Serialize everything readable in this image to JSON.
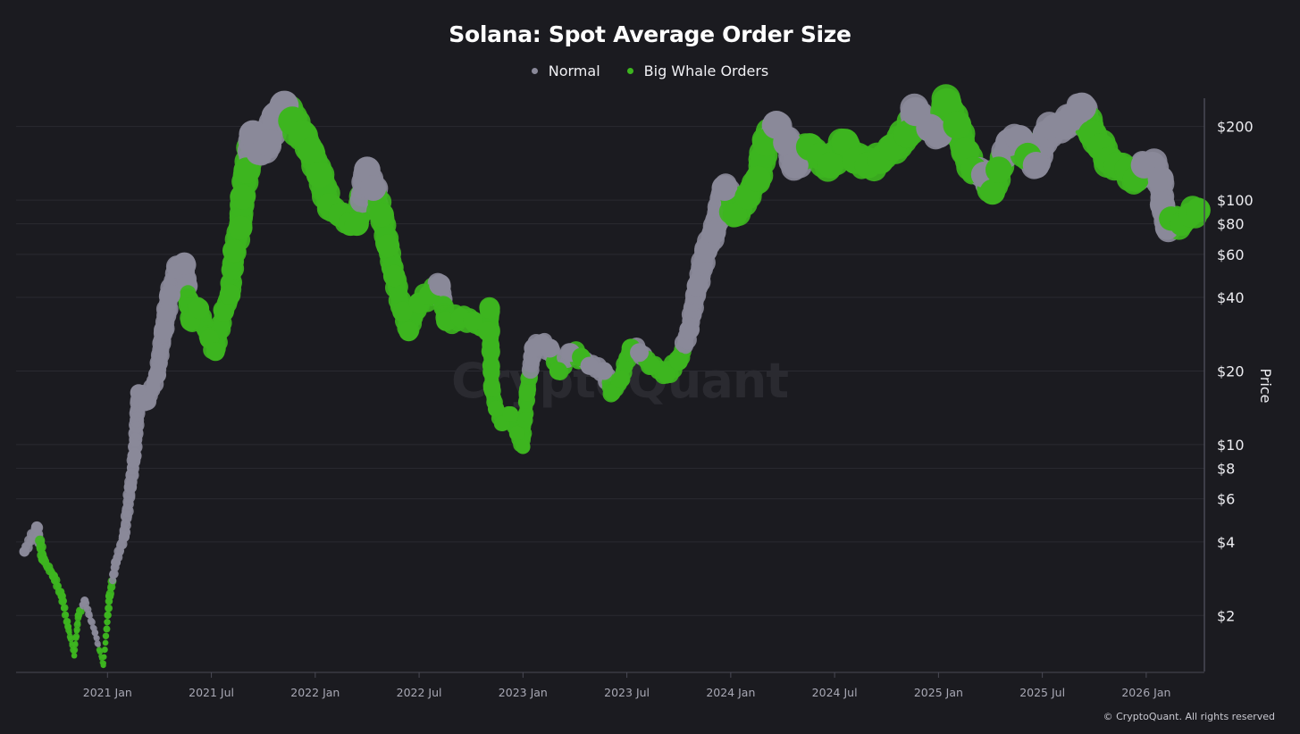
{
  "chart_data": {
    "type": "scatter",
    "title": "Solana: Spot Average Order Size",
    "ylabel": "Price",
    "xlabel": "",
    "yscale": "log",
    "ylim": [
      1.18,
      261
    ],
    "xlim": [
      2020.56,
      2026.28
    ],
    "grid": true,
    "legend_placement": "top-center",
    "legend": [
      {
        "name": "Normal",
        "color": "#8a8999"
      },
      {
        "name": "Big Whale Orders",
        "color": "#3db51f"
      }
    ],
    "y_ticks": [
      {
        "value": 200,
        "label": "$200"
      },
      {
        "value": 100,
        "label": "$100"
      },
      {
        "value": 80,
        "label": "$80"
      },
      {
        "value": 60,
        "label": "$60"
      },
      {
        "value": 40,
        "label": "$40"
      },
      {
        "value": 20,
        "label": "$20"
      },
      {
        "value": 10,
        "label": "$10"
      },
      {
        "value": 8,
        "label": "$8"
      },
      {
        "value": 6,
        "label": "$6"
      },
      {
        "value": 4,
        "label": "$4"
      },
      {
        "value": 2,
        "label": "$2"
      }
    ],
    "x_ticks": [
      {
        "value": 2021.0,
        "label": "2021 Jan"
      },
      {
        "value": 2021.5,
        "label": "2021 Jul"
      },
      {
        "value": 2022.0,
        "label": "2022 Jan"
      },
      {
        "value": 2022.5,
        "label": "2022 Jul"
      },
      {
        "value": 2023.0,
        "label": "2023 Jan"
      },
      {
        "value": 2023.5,
        "label": "2023 Jul"
      },
      {
        "value": 2024.0,
        "label": "2024 Jan"
      },
      {
        "value": 2024.5,
        "label": "2024 Jul"
      },
      {
        "value": 2025.0,
        "label": "2025 Jan"
      },
      {
        "value": 2025.5,
        "label": "2025 Jul"
      },
      {
        "value": 2026.0,
        "label": "2026 Jan"
      }
    ],
    "points_columns": [
      "year",
      "price",
      "series"
    ],
    "points": [
      [
        2020.6,
        3.65,
        "Normal"
      ],
      [
        2020.66,
        4.6,
        "Normal"
      ],
      [
        2020.69,
        3.4,
        "Big Whale Orders"
      ],
      [
        2020.74,
        2.9,
        "Big Whale Orders"
      ],
      [
        2020.78,
        2.4,
        "Big Whale Orders"
      ],
      [
        2020.81,
        1.8,
        "Big Whale Orders"
      ],
      [
        2020.84,
        1.37,
        "Big Whale Orders"
      ],
      [
        2020.86,
        2.0,
        "Big Whale Orders"
      ],
      [
        2020.89,
        2.3,
        "Normal"
      ],
      [
        2020.94,
        1.7,
        "Normal"
      ],
      [
        2020.98,
        1.25,
        "Big Whale Orders"
      ],
      [
        2021.01,
        2.4,
        "Big Whale Orders"
      ],
      [
        2021.04,
        3.3,
        "Normal"
      ],
      [
        2021.08,
        4.2,
        "Normal"
      ],
      [
        2021.11,
        6.7,
        "Normal"
      ],
      [
        2021.13,
        9.0,
        "Normal"
      ],
      [
        2021.15,
        16.3,
        "Normal"
      ],
      [
        2021.19,
        14.9,
        "Normal"
      ],
      [
        2021.24,
        19.3,
        "Normal"
      ],
      [
        2021.27,
        29.4,
        "Normal"
      ],
      [
        2021.3,
        41,
        "Normal"
      ],
      [
        2021.34,
        53,
        "Normal"
      ],
      [
        2021.37,
        55,
        "Normal"
      ],
      [
        2021.4,
        32,
        "Big Whale Orders"
      ],
      [
        2021.44,
        36,
        "Big Whale Orders"
      ],
      [
        2021.49,
        27,
        "Big Whale Orders"
      ],
      [
        2021.52,
        24,
        "Big Whale Orders"
      ],
      [
        2021.56,
        35,
        "Big Whale Orders"
      ],
      [
        2021.59,
        41,
        "Big Whale Orders"
      ],
      [
        2021.61,
        62,
        "Big Whale Orders"
      ],
      [
        2021.64,
        77,
        "Big Whale Orders"
      ],
      [
        2021.65,
        103,
        "Big Whale Orders"
      ],
      [
        2021.67,
        132,
        "Big Whale Orders"
      ],
      [
        2021.7,
        186,
        "Normal"
      ],
      [
        2021.73,
        158,
        "Normal"
      ],
      [
        2021.77,
        172,
        "Normal"
      ],
      [
        2021.81,
        220,
        "Normal"
      ],
      [
        2021.85,
        244,
        "Normal"
      ],
      [
        2021.89,
        211,
        "Big Whale Orders"
      ],
      [
        2021.94,
        186,
        "Big Whale Orders"
      ],
      [
        2021.98,
        158,
        "Big Whale Orders"
      ],
      [
        2022.02,
        127,
        "Big Whale Orders"
      ],
      [
        2022.07,
        95,
        "Big Whale Orders"
      ],
      [
        2022.12,
        87,
        "Big Whale Orders"
      ],
      [
        2022.17,
        80,
        "Big Whale Orders"
      ],
      [
        2022.2,
        80,
        "Big Whale Orders"
      ],
      [
        2022.25,
        133,
        "Normal"
      ],
      [
        2022.28,
        112,
        "Normal"
      ],
      [
        2022.32,
        87,
        "Big Whale Orders"
      ],
      [
        2022.35,
        65,
        "Big Whale Orders"
      ],
      [
        2022.38,
        49,
        "Big Whale Orders"
      ],
      [
        2022.42,
        35,
        "Big Whale Orders"
      ],
      [
        2022.45,
        29,
        "Big Whale Orders"
      ],
      [
        2022.5,
        38,
        "Big Whale Orders"
      ],
      [
        2022.55,
        41,
        "Big Whale Orders"
      ],
      [
        2022.6,
        45,
        "Normal"
      ],
      [
        2022.63,
        32,
        "Big Whale Orders"
      ],
      [
        2022.7,
        33,
        "Big Whale Orders"
      ],
      [
        2022.76,
        32,
        "Big Whale Orders"
      ],
      [
        2022.83,
        29,
        "Big Whale Orders"
      ],
      [
        2022.84,
        36,
        "Big Whale Orders"
      ],
      [
        2022.85,
        17,
        "Big Whale Orders"
      ],
      [
        2022.87,
        14,
        "Big Whale Orders"
      ],
      [
        2022.9,
        12.2,
        "Big Whale Orders"
      ],
      [
        2022.94,
        13.3,
        "Big Whale Orders"
      ],
      [
        2022.97,
        11.1,
        "Big Whale Orders"
      ],
      [
        2023.0,
        9.8,
        "Big Whale Orders"
      ],
      [
        2023.02,
        16.3,
        "Big Whale Orders"
      ],
      [
        2023.05,
        24.8,
        "Normal"
      ],
      [
        2023.09,
        25.9,
        "Normal"
      ],
      [
        2023.13,
        24.8,
        "Normal"
      ],
      [
        2023.17,
        20,
        "Big Whale Orders"
      ],
      [
        2023.23,
        23.8,
        "Normal"
      ],
      [
        2023.28,
        22.8,
        "Big Whale Orders"
      ],
      [
        2023.32,
        21,
        "Normal"
      ],
      [
        2023.39,
        20,
        "Normal"
      ],
      [
        2023.43,
        16.3,
        "Big Whale Orders"
      ],
      [
        2023.47,
        18.5,
        "Big Whale Orders"
      ],
      [
        2023.52,
        24.8,
        "Big Whale Orders"
      ],
      [
        2023.56,
        23.8,
        "Normal"
      ],
      [
        2023.62,
        21,
        "Big Whale Orders"
      ],
      [
        2023.69,
        19.3,
        "Big Whale Orders"
      ],
      [
        2023.75,
        21.9,
        "Big Whale Orders"
      ],
      [
        2023.8,
        29.4,
        "Normal"
      ],
      [
        2023.84,
        44.6,
        "Normal"
      ],
      [
        2023.88,
        62,
        "Normal"
      ],
      [
        2023.92,
        74,
        "Normal"
      ],
      [
        2023.97,
        112,
        "Normal"
      ],
      [
        2024.02,
        87,
        "Big Whale Orders"
      ],
      [
        2024.08,
        103,
        "Big Whale Orders"
      ],
      [
        2024.13,
        122,
        "Big Whale Orders"
      ],
      [
        2024.17,
        172,
        "Big Whale Orders"
      ],
      [
        2024.22,
        203,
        "Normal"
      ],
      [
        2024.27,
        172,
        "Normal"
      ],
      [
        2024.31,
        139,
        "Normal"
      ],
      [
        2024.38,
        165,
        "Big Whale Orders"
      ],
      [
        2024.43,
        151,
        "Big Whale Orders"
      ],
      [
        2024.48,
        139,
        "Big Whale Orders"
      ],
      [
        2024.55,
        172,
        "Big Whale Orders"
      ],
      [
        2024.6,
        145,
        "Big Whale Orders"
      ],
      [
        2024.66,
        139,
        "Big Whale Orders"
      ],
      [
        2024.72,
        145,
        "Big Whale Orders"
      ],
      [
        2024.78,
        165,
        "Big Whale Orders"
      ],
      [
        2024.85,
        186,
        "Big Whale Orders"
      ],
      [
        2024.89,
        230,
        "Normal"
      ],
      [
        2024.96,
        197,
        "Normal"
      ],
      [
        2025.0,
        186,
        "Normal"
      ],
      [
        2025.04,
        250,
        "Big Whale Orders"
      ],
      [
        2025.09,
        203,
        "Big Whale Orders"
      ],
      [
        2025.13,
        158,
        "Big Whale Orders"
      ],
      [
        2025.17,
        133,
        "Big Whale Orders"
      ],
      [
        2025.22,
        127,
        "Normal"
      ],
      [
        2025.26,
        108,
        "Big Whale Orders"
      ],
      [
        2025.29,
        133,
        "Big Whale Orders"
      ],
      [
        2025.34,
        172,
        "Normal"
      ],
      [
        2025.39,
        178,
        "Normal"
      ],
      [
        2025.43,
        151,
        "Big Whale Orders"
      ],
      [
        2025.47,
        139,
        "Normal"
      ],
      [
        2025.52,
        186,
        "Normal"
      ],
      [
        2025.56,
        197,
        "Normal"
      ],
      [
        2025.6,
        203,
        "Normal"
      ],
      [
        2025.65,
        220,
        "Normal"
      ],
      [
        2025.69,
        240,
        "Normal"
      ],
      [
        2025.74,
        186,
        "Big Whale Orders"
      ],
      [
        2025.78,
        165,
        "Big Whale Orders"
      ],
      [
        2025.82,
        145,
        "Big Whale Orders"
      ],
      [
        2025.86,
        139,
        "Big Whale Orders"
      ],
      [
        2025.91,
        133,
        "Big Whale Orders"
      ],
      [
        2025.95,
        122,
        "Big Whale Orders"
      ],
      [
        2025.99,
        139,
        "Normal"
      ],
      [
        2026.03,
        139,
        "Normal"
      ],
      [
        2026.07,
        122,
        "Normal"
      ],
      [
        2026.08,
        95,
        "Normal"
      ],
      [
        2026.1,
        77,
        "Normal"
      ],
      [
        2026.12,
        84,
        "Big Whale Orders"
      ],
      [
        2026.17,
        80,
        "Big Whale Orders"
      ],
      [
        2026.21,
        87,
        "Big Whale Orders"
      ],
      [
        2026.25,
        91,
        "Big Whale Orders"
      ]
    ],
    "watermark": "CryptoQuant"
  },
  "copyright": "© CryptoQuant. All rights reserved"
}
